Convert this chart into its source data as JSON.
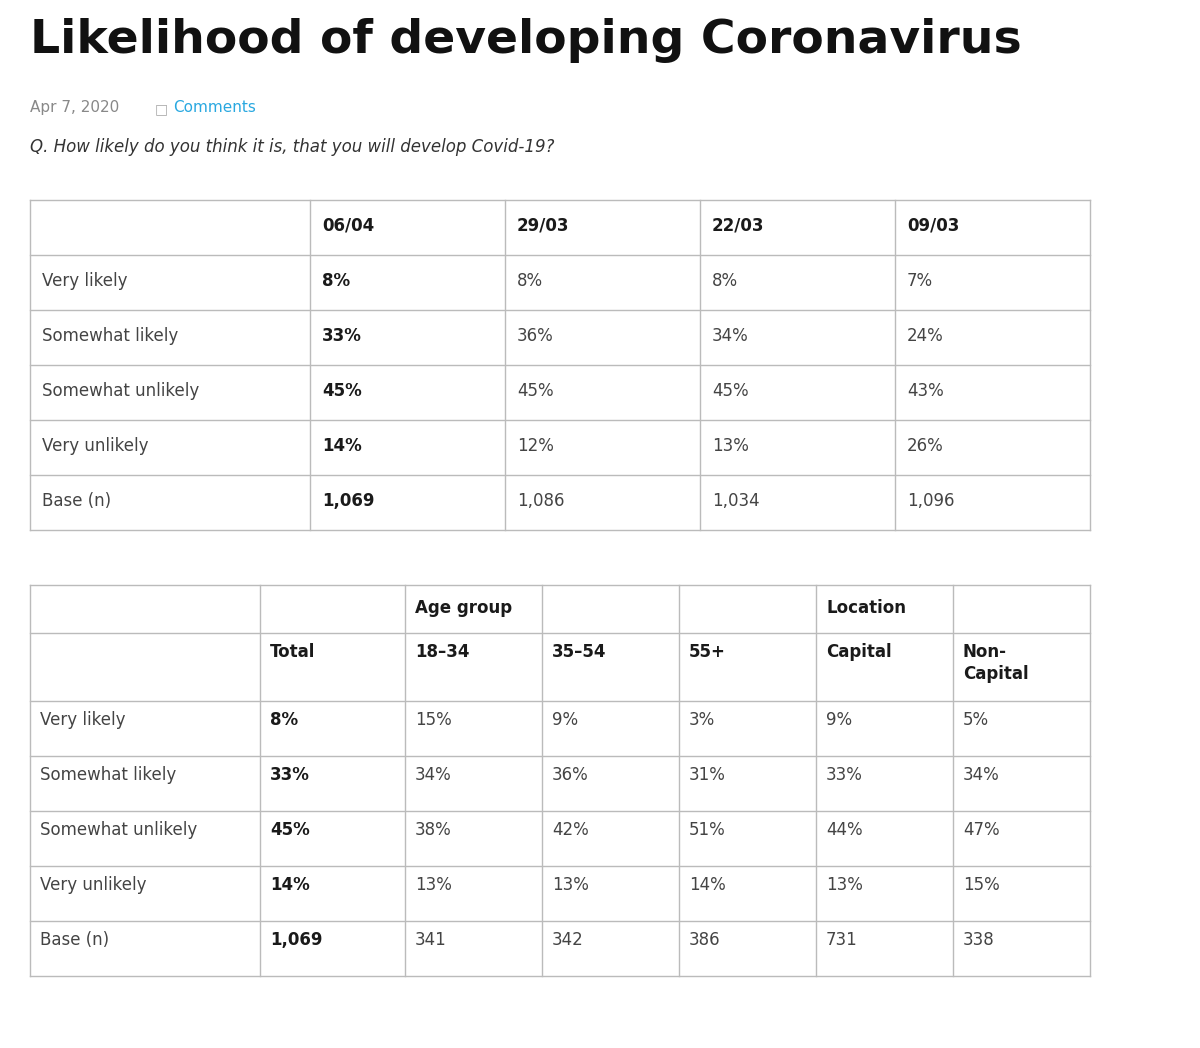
{
  "title": "Likelihood of developing Coronavirus",
  "date": "Apr 7, 2020",
  "comments_text": "Comments",
  "question": "Q. How likely do you think it is, that you will develop Covid-19?",
  "bg_color": "#ffffff",
  "table1": {
    "headers": [
      "",
      "06/04",
      "29/03",
      "22/03",
      "09/03"
    ],
    "rows": [
      [
        "Very likely",
        "8%",
        "8%",
        "8%",
        "7%"
      ],
      [
        "Somewhat likely",
        "33%",
        "36%",
        "34%",
        "24%"
      ],
      [
        "Somewhat unlikely",
        "45%",
        "45%",
        "45%",
        "43%"
      ],
      [
        "Very unlikely",
        "14%",
        "12%",
        "13%",
        "26%"
      ],
      [
        "Base (n)",
        "1,069",
        "1,086",
        "1,034",
        "1,096"
      ]
    ]
  },
  "table2": {
    "sub_headers": [
      "",
      "Total",
      "18–34",
      "35–54",
      "55+",
      "Capital",
      "Non-\nCapital"
    ],
    "rows": [
      [
        "Very likely",
        "8%",
        "15%",
        "9%",
        "3%",
        "9%",
        "5%"
      ],
      [
        "Somewhat likely",
        "33%",
        "34%",
        "36%",
        "31%",
        "33%",
        "34%"
      ],
      [
        "Somewhat unlikely",
        "45%",
        "38%",
        "42%",
        "51%",
        "44%",
        "47%"
      ],
      [
        "Very unlikely",
        "14%",
        "13%",
        "13%",
        "14%",
        "13%",
        "15%"
      ],
      [
        "Base (n)",
        "1,069",
        "341",
        "342",
        "386",
        "731",
        "338"
      ]
    ]
  },
  "border_color": "#bbbbbb",
  "bold_color": "#1a1a1a",
  "normal_color": "#444444",
  "light_color": "#888888",
  "comments_color": "#29a8e0",
  "fig_w": 12.0,
  "fig_h": 10.48,
  "dpi": 100
}
